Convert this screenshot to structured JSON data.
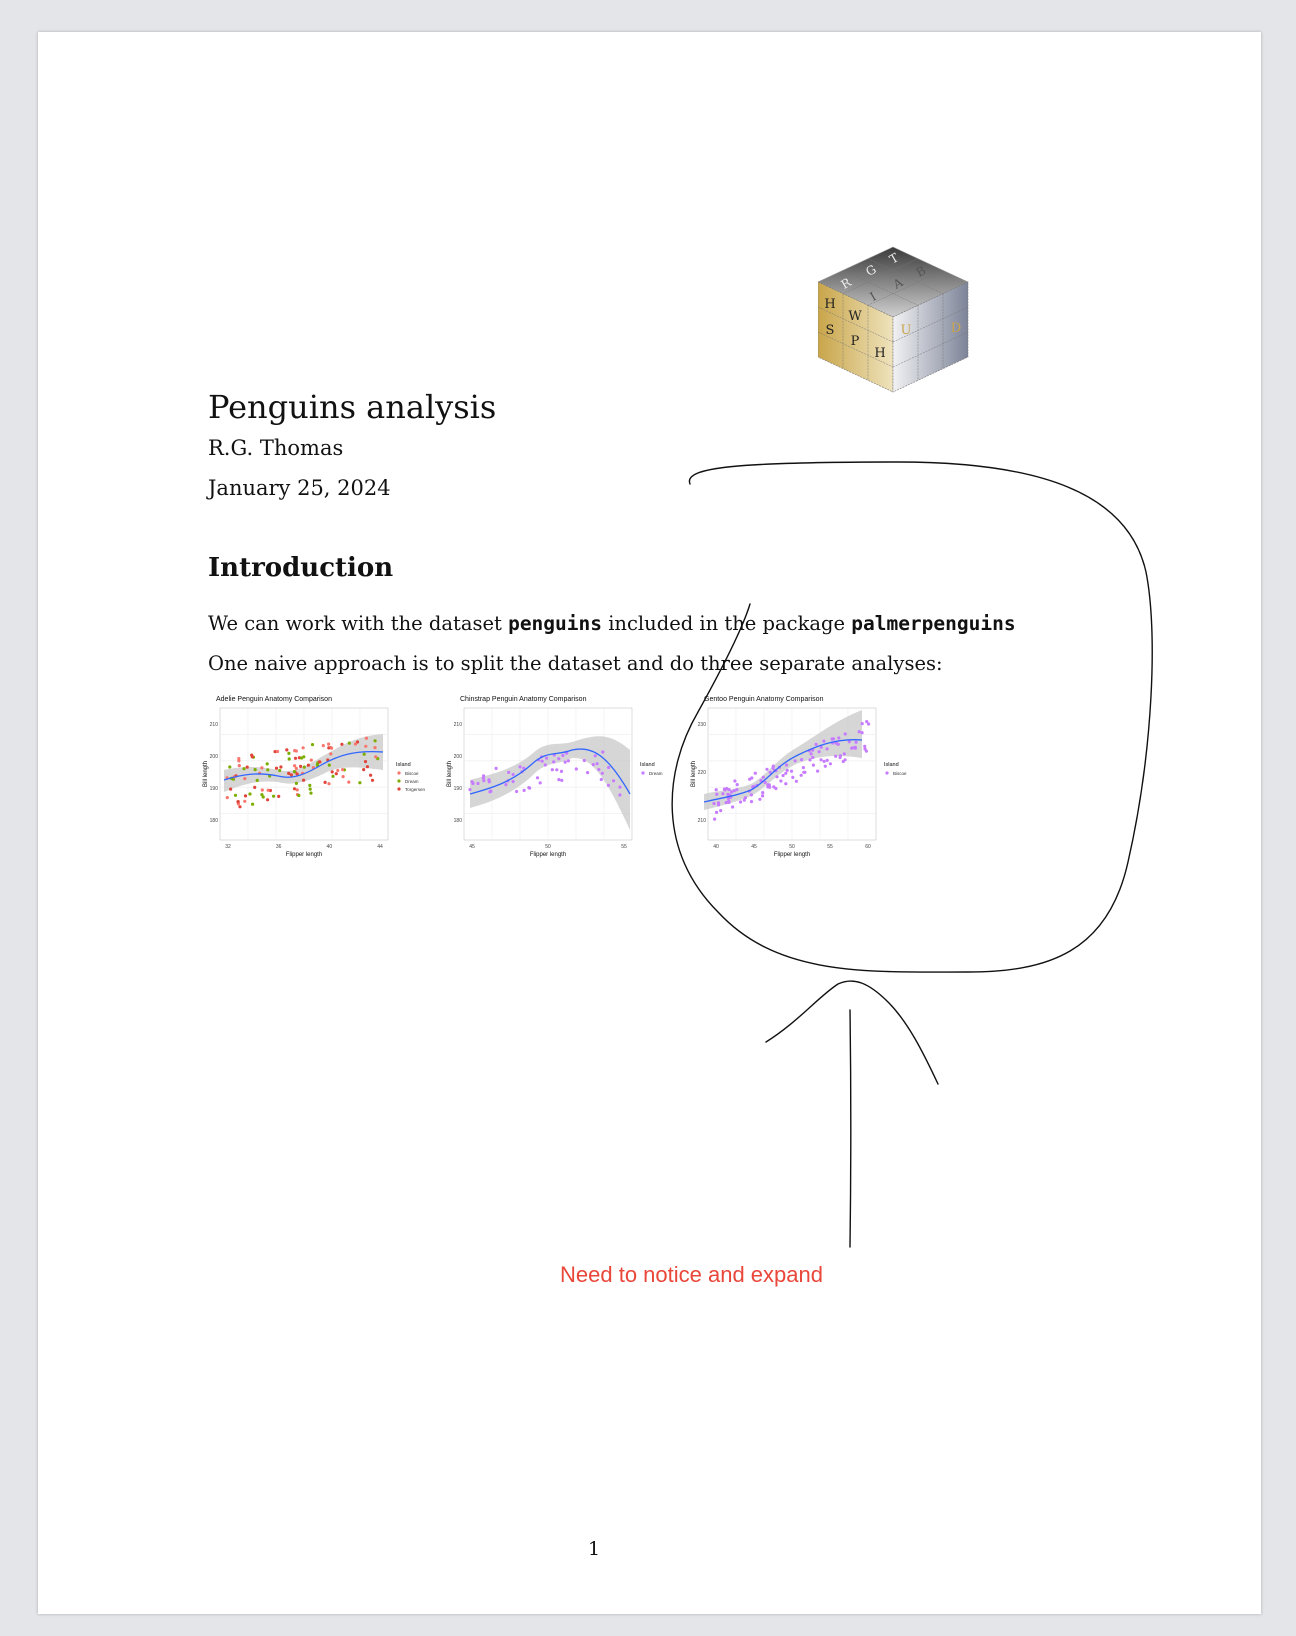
{
  "document": {
    "title": "Penguins analysis",
    "author": "R.G. Thomas",
    "date": "January 25, 2024",
    "section_heading": "Introduction",
    "para1": {
      "before": "We can work with the dataset ",
      "code1": "penguins",
      "middle": " included in the package ",
      "code2": "palmerpenguins"
    },
    "para2": "One naive approach is to split the dataset and do three separate analyses:",
    "page_number": "1"
  },
  "annotation": {
    "note": "Need to notice and expand",
    "note_color": "#e8473a"
  },
  "logo": {
    "letters_top": [
      "R",
      "G",
      "T",
      "I",
      "A",
      "B"
    ],
    "letters_left": [
      "H",
      "W",
      "S",
      "P"
    ],
    "letters_right": [
      "H",
      "U",
      "D"
    ]
  },
  "chart_data": [
    {
      "type": "scatter",
      "title": "Adelie  Penguin Anatomy Comparison",
      "xlabel": "Flipper length",
      "ylabel": "Bill length",
      "x_ticks": [
        "32",
        "36",
        "40",
        "44"
      ],
      "y_ticks": [
        "180",
        "190",
        "200",
        "210"
      ],
      "legend_title": "Island",
      "legend": [
        {
          "name": "Biscoe",
          "color": "#f8766d"
        },
        {
          "name": "Dream",
          "color": "#7cae00"
        },
        {
          "name": "Torgersen",
          "color": "#e0443a"
        }
      ],
      "smooth_color": "#3366ff",
      "grid": true,
      "legend_position": "right"
    },
    {
      "type": "scatter",
      "title": "Chinstrap  Penguin Anatomy Comparison",
      "xlabel": "Flipper length",
      "ylabel": "Bill length",
      "x_ticks": [
        "45",
        "50",
        "55"
      ],
      "y_ticks": [
        "180",
        "190",
        "200",
        "210"
      ],
      "legend_title": "Island",
      "legend": [
        {
          "name": "Dream",
          "color": "#c77cff"
        }
      ],
      "smooth_color": "#3366ff",
      "grid": true,
      "legend_position": "right"
    },
    {
      "type": "scatter",
      "title": "Gentoo  Penguin Anatomy Comparison",
      "xlabel": "Flipper length",
      "ylabel": "Bill length",
      "x_ticks": [
        "40",
        "45",
        "50",
        "55",
        "60"
      ],
      "y_ticks": [
        "210",
        "220",
        "230"
      ],
      "legend_title": "Island",
      "legend": [
        {
          "name": "Biscoe",
          "color": "#c77cff"
        }
      ],
      "smooth_color": "#3366ff",
      "grid": true,
      "legend_position": "right"
    }
  ]
}
